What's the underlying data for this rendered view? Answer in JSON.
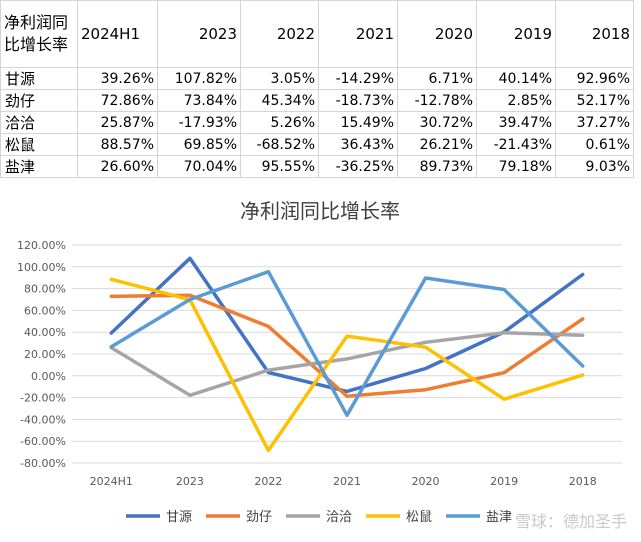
{
  "table": {
    "corner": "净利润同比增长率",
    "columns": [
      "2024H1",
      "2023",
      "2022",
      "2021",
      "2020",
      "2019",
      "2018"
    ],
    "rows": [
      {
        "name": "甘源",
        "cells": [
          "39.26%",
          "107.82%",
          "3.05%",
          "-14.29%",
          "6.71%",
          "40.14%",
          "92.96%"
        ]
      },
      {
        "name": "劲仔",
        "cells": [
          "72.86%",
          "73.84%",
          "45.34%",
          "-18.73%",
          "-12.78%",
          "2.85%",
          "52.17%"
        ]
      },
      {
        "name": "洽洽",
        "cells": [
          "25.87%",
          "-17.93%",
          "5.26%",
          "15.49%",
          "30.72%",
          "39.47%",
          "37.27%"
        ]
      },
      {
        "name": "松鼠",
        "cells": [
          "88.57%",
          "69.85%",
          "-68.52%",
          "36.43%",
          "26.21%",
          "-21.43%",
          "0.61%"
        ]
      },
      {
        "name": "盐津",
        "cells": [
          "26.60%",
          "70.04%",
          "95.55%",
          "-36.25%",
          "89.73%",
          "79.18%",
          "9.03%"
        ]
      }
    ]
  },
  "chart_data": {
    "type": "line",
    "title": "净利润同比增长率",
    "categories": [
      "2024H1",
      "2023",
      "2022",
      "2021",
      "2020",
      "2019",
      "2018"
    ],
    "ylim": [
      -80,
      120
    ],
    "ytick_step": 20,
    "yticks": [
      "120.00%",
      "100.00%",
      "80.00%",
      "60.00%",
      "40.00%",
      "20.00%",
      "0.00%",
      "-20.00%",
      "-40.00%",
      "-60.00%",
      "-80.00%"
    ],
    "grid": true,
    "legend_position": "bottom",
    "series": [
      {
        "name": "甘源",
        "color": "#4472c4",
        "values": [
          39.26,
          107.82,
          3.05,
          -14.29,
          6.71,
          40.14,
          92.96
        ]
      },
      {
        "name": "劲仔",
        "color": "#ed7d31",
        "values": [
          72.86,
          73.84,
          45.34,
          -18.73,
          -12.78,
          2.85,
          52.17
        ]
      },
      {
        "name": "洽洽",
        "color": "#a5a5a5",
        "values": [
          25.87,
          -17.93,
          5.26,
          15.49,
          30.72,
          39.47,
          37.27
        ]
      },
      {
        "name": "松鼠",
        "color": "#ffc000",
        "values": [
          88.57,
          69.85,
          -68.52,
          36.43,
          26.21,
          -21.43,
          0.61
        ]
      },
      {
        "name": "盐津",
        "color": "#5b9bd5",
        "values": [
          26.6,
          70.04,
          95.55,
          -36.25,
          89.73,
          79.18,
          9.03
        ]
      }
    ]
  },
  "watermark": "雪球：德加圣手"
}
